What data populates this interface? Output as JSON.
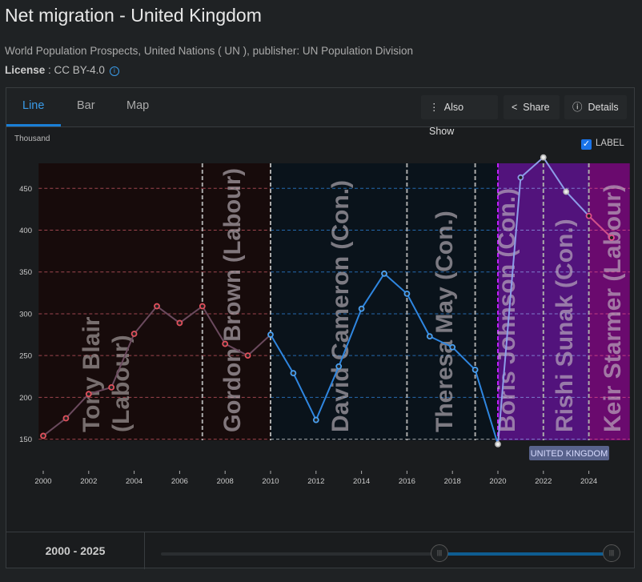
{
  "header": {
    "title": "Net migration - United Kingdom",
    "source": "World Population Prospects, United Nations ( UN ), publisher: UN Population Division",
    "license_label": "License",
    "license_value": ": CC BY-4.0"
  },
  "tabs": [
    {
      "label": "Line",
      "active": true
    },
    {
      "label": "Bar"
    },
    {
      "label": "Map"
    }
  ],
  "actions": {
    "also_show": "Also Show",
    "share": "Share",
    "details": "Details"
  },
  "legend_toggle": {
    "label": "LABEL",
    "checked": true
  },
  "footer": {
    "range": "2000 - 2025"
  },
  "chart_data": {
    "type": "line",
    "ylabel": "Thousand",
    "ylim": [
      150,
      480
    ],
    "xlim": [
      1999.8,
      2025.8
    ],
    "yticks": [
      150,
      200,
      250,
      300,
      350,
      400,
      450
    ],
    "xticks": [
      2000,
      2002,
      2004,
      2006,
      2008,
      2010,
      2012,
      2014,
      2016,
      2018,
      2020,
      2022,
      2024
    ],
    "grid": true,
    "series": [
      {
        "name": "UNITED KINGDOM",
        "x": [
          2000,
          2001,
          2002,
          2003,
          2004,
          2005,
          2006,
          2007,
          2008,
          2009,
          2010,
          2011,
          2012,
          2013,
          2014,
          2015,
          2016,
          2017,
          2018,
          2019,
          2020,
          2021,
          2022,
          2023,
          2024,
          2025
        ],
        "values": [
          154,
          175,
          204,
          212,
          276,
          309,
          289,
          309,
          264,
          250,
          275,
          229,
          173,
          237,
          306,
          348,
          324,
          273,
          260,
          233,
          144,
          463,
          487,
          446,
          417,
          391
        ]
      }
    ],
    "annotations": [
      {
        "label": "Tony Blair (Labour)",
        "start": 2000,
        "end": 2007,
        "color": "#170b0b",
        "line": "#cc5a66"
      },
      {
        "label": "Gordon Brown (Labour)",
        "start": 2007,
        "end": 2010,
        "color": "#170b0b",
        "line": "#cc5a66"
      },
      {
        "label": "David Cameron (Con.)",
        "start": 2010,
        "end": 2016,
        "color": "#0a131b",
        "line": "#2f86e0"
      },
      {
        "label": "Theresa May (Con.)",
        "start": 2016,
        "end": 2019,
        "color": "#0a131b",
        "line": "#2f86e0"
      },
      {
        "label": "Boris Johnson (Con.)",
        "start": 2020,
        "end": 2022,
        "color": "#52137c",
        "line": "#8d9de8"
      },
      {
        "label": "Rishi Sunak (Con.)",
        "start": 2022,
        "end": 2024,
        "color": "#52137c",
        "line": "#8d9de8"
      },
      {
        "label": "Keir Starmer (Labour)",
        "start": 2024,
        "end": 2025.8,
        "color": "#6a0a6e",
        "line": "#e0508a"
      }
    ]
  }
}
